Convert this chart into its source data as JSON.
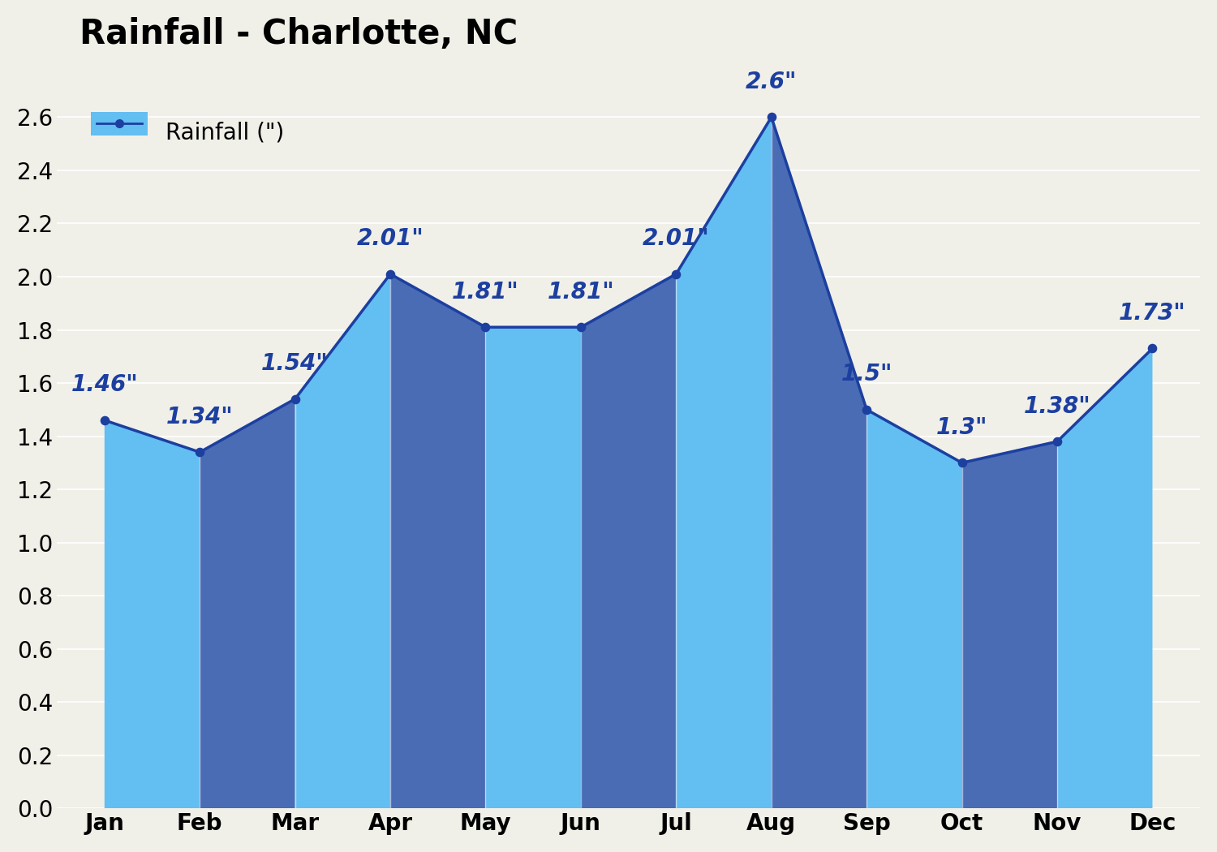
{
  "title": "Rainfall - Charlotte, NC",
  "months": [
    "Jan",
    "Feb",
    "Mar",
    "Apr",
    "May",
    "Jun",
    "Jul",
    "Aug",
    "Sep",
    "Oct",
    "Nov",
    "Dec"
  ],
  "values": [
    1.46,
    1.34,
    1.54,
    2.01,
    1.81,
    1.81,
    2.01,
    2.6,
    1.5,
    1.3,
    1.38,
    1.73
  ],
  "labels": [
    "1.46\"",
    "1.34\"",
    "1.54\"",
    "2.01\"",
    "1.81\"",
    "1.81\"",
    "2.01\"",
    "2.6\"",
    "1.5\"",
    "1.3\"",
    "1.38\"",
    "1.73\""
  ],
  "bar_color_light": "#63BEF2",
  "bar_color_dark": "#4A6CB5",
  "line_color": "#1C3FA0",
  "dot_color": "#1C3FA0",
  "dot_outline_color": "#AACCEE",
  "label_color": "#1C3FA0",
  "background_color": "#F0F0E8",
  "grid_color": "#FFFFFF",
  "ylim": [
    0.0,
    2.8
  ],
  "yticks": [
    0.0,
    0.2,
    0.4,
    0.6,
    0.8,
    1.0,
    1.2,
    1.4,
    1.6,
    1.8,
    2.0,
    2.2,
    2.4,
    2.6
  ],
  "legend_label": "Rainfall (\")",
  "title_fontsize": 30,
  "label_fontsize": 20,
  "tick_fontsize": 20,
  "legend_fontsize": 20,
  "figsize": [
    15.0,
    10.5
  ],
  "dpi": 100,
  "dark_segments": [
    1,
    3,
    5,
    7,
    9,
    11
  ]
}
